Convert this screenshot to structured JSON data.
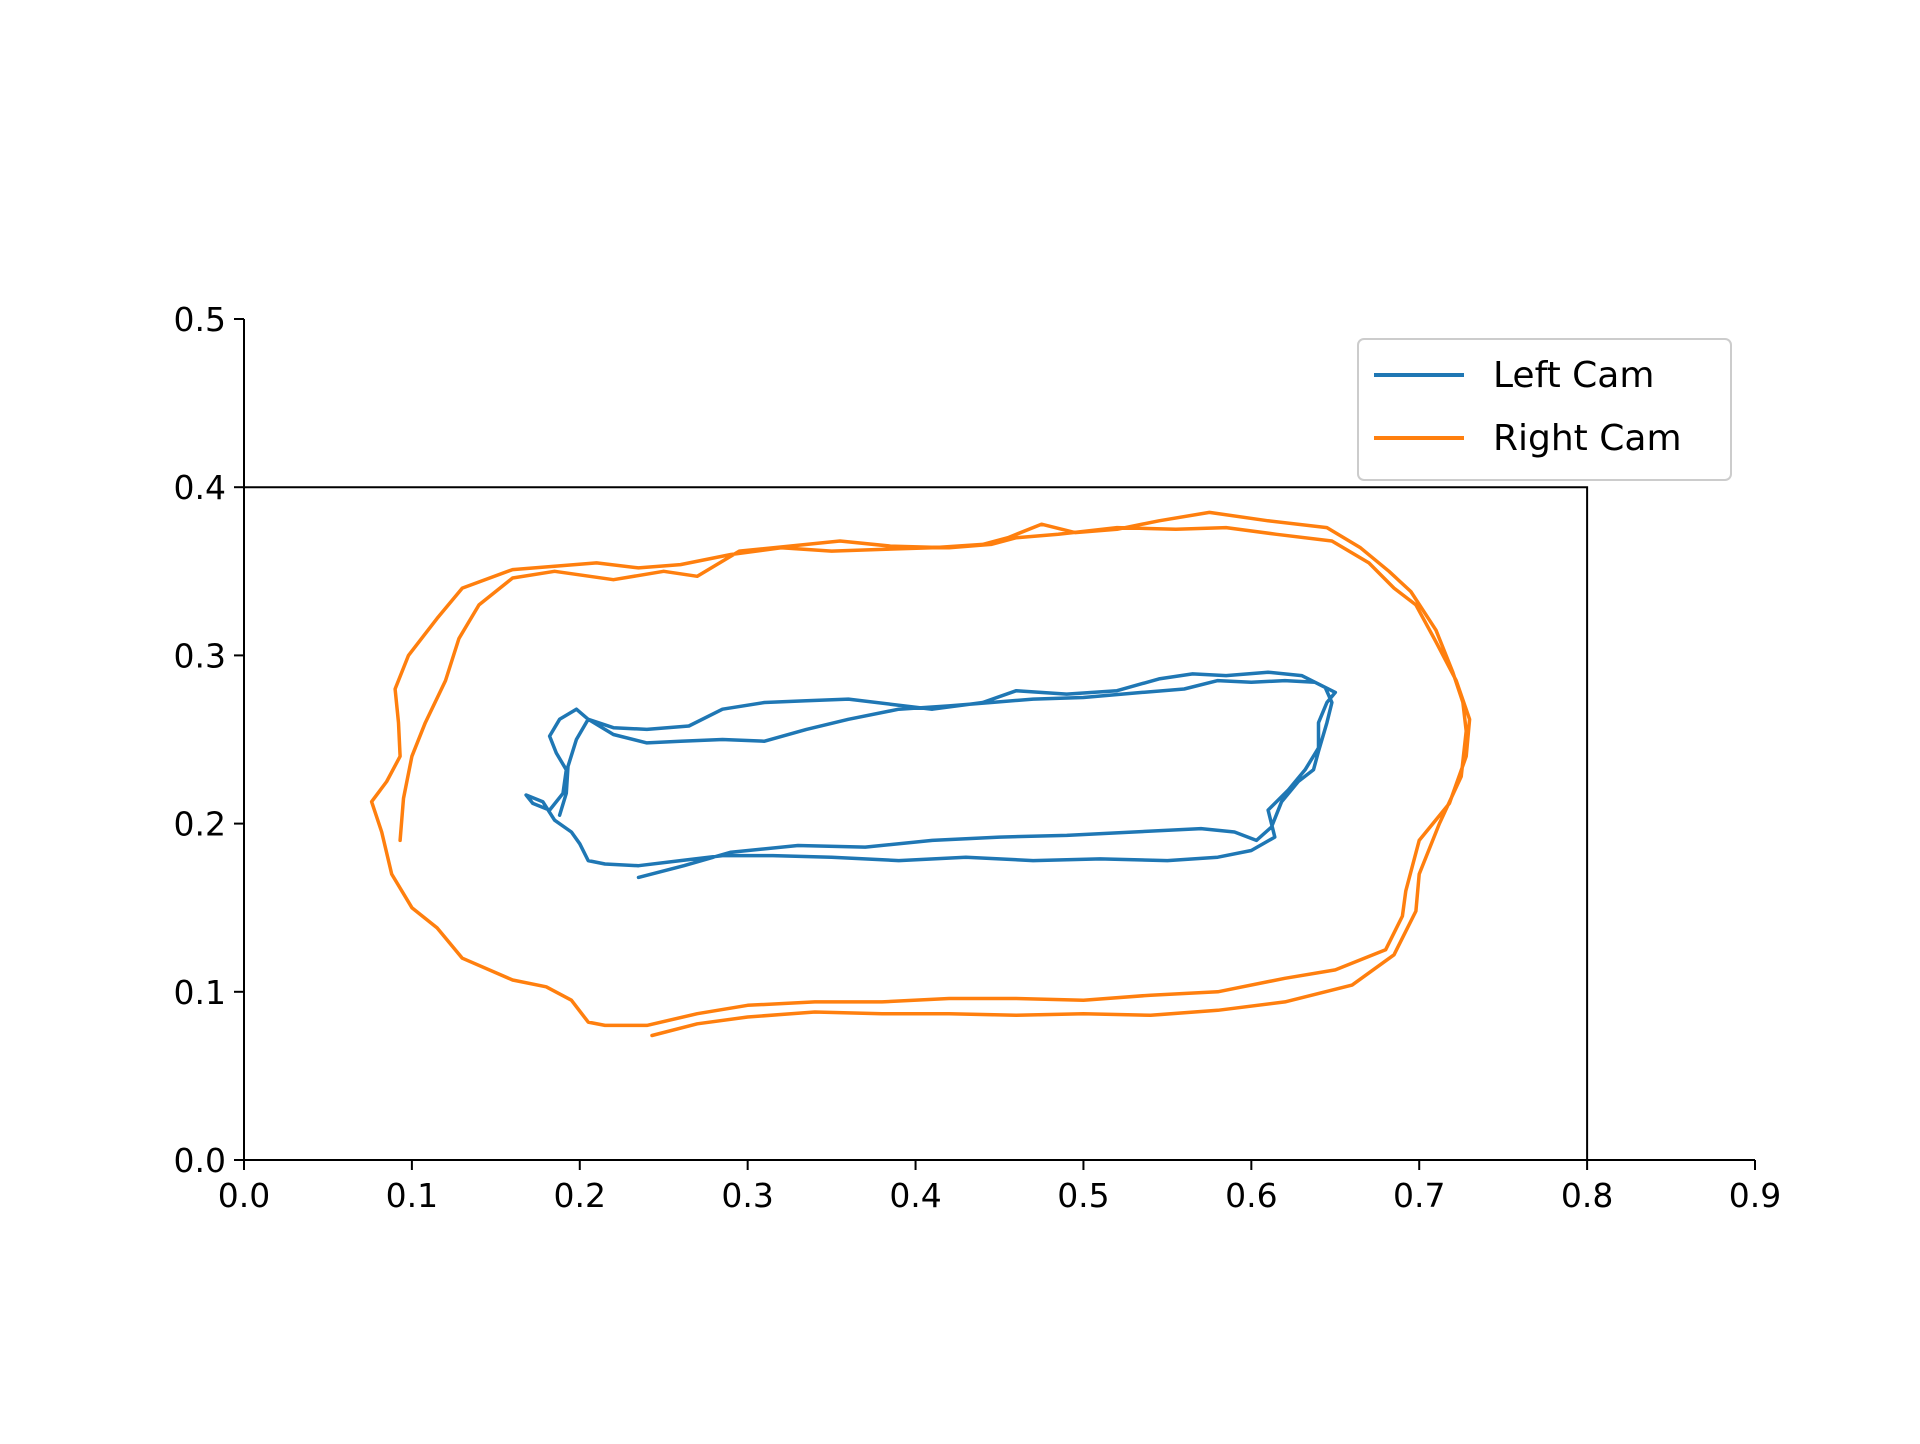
{
  "chart_data": {
    "type": "line",
    "title": "",
    "xlabel": "",
    "ylabel": "",
    "xlim": [
      0.0,
      0.9
    ],
    "ylim": [
      0.0,
      0.5
    ],
    "xticks": [
      "0.0",
      "0.1",
      "0.2",
      "0.3",
      "0.4",
      "0.5",
      "0.6",
      "0.7",
      "0.8",
      "0.9"
    ],
    "yticks": [
      "0.0",
      "0.1",
      "0.2",
      "0.3",
      "0.4",
      "0.5"
    ],
    "grid": false,
    "legend_position": "top-right",
    "inner_frame": {
      "x": [
        0.0,
        0.8
      ],
      "y": [
        0.0,
        0.4
      ]
    },
    "series": [
      {
        "name": "Left Cam",
        "color": "#1f77b4",
        "points": [
          [
            0.235,
            0.168
          ],
          [
            0.262,
            0.175
          ],
          [
            0.29,
            0.183
          ],
          [
            0.33,
            0.187
          ],
          [
            0.37,
            0.186
          ],
          [
            0.41,
            0.19
          ],
          [
            0.45,
            0.192
          ],
          [
            0.49,
            0.193
          ],
          [
            0.53,
            0.195
          ],
          [
            0.57,
            0.197
          ],
          [
            0.59,
            0.195
          ],
          [
            0.603,
            0.19
          ],
          [
            0.612,
            0.198
          ],
          [
            0.618,
            0.213
          ],
          [
            0.628,
            0.225
          ],
          [
            0.637,
            0.232
          ],
          [
            0.64,
            0.243
          ],
          [
            0.645,
            0.26
          ],
          [
            0.648,
            0.272
          ],
          [
            0.644,
            0.281
          ],
          [
            0.63,
            0.288
          ],
          [
            0.61,
            0.29
          ],
          [
            0.585,
            0.288
          ],
          [
            0.565,
            0.289
          ],
          [
            0.545,
            0.286
          ],
          [
            0.52,
            0.279
          ],
          [
            0.49,
            0.277
          ],
          [
            0.46,
            0.279
          ],
          [
            0.44,
            0.272
          ],
          [
            0.41,
            0.268
          ],
          [
            0.385,
            0.271
          ],
          [
            0.36,
            0.274
          ],
          [
            0.335,
            0.273
          ],
          [
            0.31,
            0.272
          ],
          [
            0.285,
            0.268
          ],
          [
            0.265,
            0.258
          ],
          [
            0.24,
            0.256
          ],
          [
            0.22,
            0.257
          ],
          [
            0.205,
            0.262
          ],
          [
            0.198,
            0.268
          ],
          [
            0.188,
            0.262
          ],
          [
            0.182,
            0.252
          ],
          [
            0.186,
            0.242
          ],
          [
            0.192,
            0.232
          ],
          [
            0.19,
            0.218
          ],
          [
            0.182,
            0.208
          ],
          [
            0.172,
            0.212
          ],
          [
            0.168,
            0.217
          ],
          [
            0.178,
            0.213
          ],
          [
            0.185,
            0.202
          ],
          [
            0.195,
            0.195
          ],
          [
            0.2,
            0.188
          ],
          [
            0.205,
            0.178
          ],
          [
            0.215,
            0.176
          ],
          [
            0.235,
            0.175
          ],
          [
            0.26,
            0.178
          ],
          [
            0.285,
            0.181
          ],
          [
            0.315,
            0.181
          ],
          [
            0.35,
            0.18
          ],
          [
            0.39,
            0.178
          ],
          [
            0.43,
            0.18
          ],
          [
            0.47,
            0.178
          ],
          [
            0.51,
            0.179
          ],
          [
            0.55,
            0.178
          ],
          [
            0.58,
            0.18
          ],
          [
            0.6,
            0.184
          ],
          [
            0.614,
            0.192
          ],
          [
            0.61,
            0.208
          ],
          [
            0.622,
            0.22
          ],
          [
            0.632,
            0.232
          ],
          [
            0.64,
            0.245
          ],
          [
            0.64,
            0.26
          ],
          [
            0.645,
            0.272
          ],
          [
            0.65,
            0.278
          ],
          [
            0.638,
            0.284
          ],
          [
            0.62,
            0.285
          ],
          [
            0.6,
            0.284
          ],
          [
            0.58,
            0.285
          ],
          [
            0.56,
            0.28
          ],
          [
            0.535,
            0.278
          ],
          [
            0.5,
            0.275
          ],
          [
            0.47,
            0.274
          ],
          [
            0.445,
            0.272
          ],
          [
            0.42,
            0.27
          ],
          [
            0.39,
            0.268
          ],
          [
            0.36,
            0.262
          ],
          [
            0.335,
            0.256
          ],
          [
            0.31,
            0.249
          ],
          [
            0.285,
            0.25
          ],
          [
            0.26,
            0.249
          ],
          [
            0.24,
            0.248
          ],
          [
            0.22,
            0.253
          ],
          [
            0.205,
            0.262
          ],
          [
            0.198,
            0.25
          ],
          [
            0.193,
            0.234
          ],
          [
            0.192,
            0.218
          ],
          [
            0.188,
            0.205
          ]
        ]
      },
      {
        "name": "Right Cam",
        "color": "#ff7f0e",
        "points": [
          [
            0.243,
            0.074
          ],
          [
            0.27,
            0.081
          ],
          [
            0.3,
            0.085
          ],
          [
            0.34,
            0.088
          ],
          [
            0.38,
            0.087
          ],
          [
            0.42,
            0.087
          ],
          [
            0.46,
            0.086
          ],
          [
            0.5,
            0.087
          ],
          [
            0.54,
            0.086
          ],
          [
            0.58,
            0.089
          ],
          [
            0.62,
            0.094
          ],
          [
            0.66,
            0.104
          ],
          [
            0.685,
            0.122
          ],
          [
            0.698,
            0.148
          ],
          [
            0.7,
            0.17
          ],
          [
            0.712,
            0.2
          ],
          [
            0.725,
            0.228
          ],
          [
            0.728,
            0.255
          ],
          [
            0.726,
            0.272
          ],
          [
            0.72,
            0.29
          ],
          [
            0.71,
            0.315
          ],
          [
            0.695,
            0.338
          ],
          [
            0.682,
            0.35
          ],
          [
            0.665,
            0.364
          ],
          [
            0.645,
            0.376
          ],
          [
            0.61,
            0.38
          ],
          [
            0.575,
            0.385
          ],
          [
            0.545,
            0.38
          ],
          [
            0.52,
            0.375
          ],
          [
            0.495,
            0.373
          ],
          [
            0.475,
            0.378
          ],
          [
            0.455,
            0.37
          ],
          [
            0.44,
            0.366
          ],
          [
            0.41,
            0.364
          ],
          [
            0.38,
            0.363
          ],
          [
            0.35,
            0.362
          ],
          [
            0.32,
            0.364
          ],
          [
            0.29,
            0.36
          ],
          [
            0.26,
            0.354
          ],
          [
            0.235,
            0.352
          ],
          [
            0.21,
            0.355
          ],
          [
            0.185,
            0.353
          ],
          [
            0.16,
            0.351
          ],
          [
            0.13,
            0.34
          ],
          [
            0.115,
            0.322
          ],
          [
            0.098,
            0.3
          ],
          [
            0.09,
            0.28
          ],
          [
            0.092,
            0.26
          ],
          [
            0.093,
            0.24
          ],
          [
            0.085,
            0.225
          ],
          [
            0.076,
            0.213
          ],
          [
            0.082,
            0.195
          ],
          [
            0.088,
            0.17
          ],
          [
            0.1,
            0.15
          ],
          [
            0.115,
            0.138
          ],
          [
            0.13,
            0.12
          ],
          [
            0.16,
            0.107
          ],
          [
            0.18,
            0.103
          ],
          [
            0.195,
            0.095
          ],
          [
            0.205,
            0.082
          ],
          [
            0.215,
            0.08
          ],
          [
            0.24,
            0.08
          ],
          [
            0.27,
            0.087
          ],
          [
            0.3,
            0.092
          ],
          [
            0.34,
            0.094
          ],
          [
            0.38,
            0.094
          ],
          [
            0.42,
            0.096
          ],
          [
            0.46,
            0.096
          ],
          [
            0.5,
            0.095
          ],
          [
            0.54,
            0.098
          ],
          [
            0.58,
            0.1
          ],
          [
            0.62,
            0.108
          ],
          [
            0.65,
            0.113
          ],
          [
            0.68,
            0.125
          ],
          [
            0.69,
            0.145
          ],
          [
            0.692,
            0.16
          ],
          [
            0.7,
            0.19
          ],
          [
            0.718,
            0.212
          ],
          [
            0.728,
            0.24
          ],
          [
            0.73,
            0.262
          ],
          [
            0.722,
            0.285
          ],
          [
            0.71,
            0.308
          ],
          [
            0.698,
            0.33
          ],
          [
            0.685,
            0.34
          ],
          [
            0.67,
            0.355
          ],
          [
            0.648,
            0.368
          ],
          [
            0.615,
            0.372
          ],
          [
            0.585,
            0.376
          ],
          [
            0.555,
            0.375
          ],
          [
            0.52,
            0.376
          ],
          [
            0.485,
            0.372
          ],
          [
            0.46,
            0.37
          ],
          [
            0.445,
            0.366
          ],
          [
            0.42,
            0.364
          ],
          [
            0.385,
            0.365
          ],
          [
            0.355,
            0.368
          ],
          [
            0.325,
            0.365
          ],
          [
            0.295,
            0.362
          ],
          [
            0.27,
            0.347
          ],
          [
            0.25,
            0.35
          ],
          [
            0.22,
            0.345
          ],
          [
            0.185,
            0.35
          ],
          [
            0.16,
            0.346
          ],
          [
            0.14,
            0.33
          ],
          [
            0.128,
            0.31
          ],
          [
            0.12,
            0.285
          ],
          [
            0.108,
            0.26
          ],
          [
            0.1,
            0.24
          ],
          [
            0.095,
            0.215
          ],
          [
            0.093,
            0.19
          ]
        ]
      }
    ]
  }
}
